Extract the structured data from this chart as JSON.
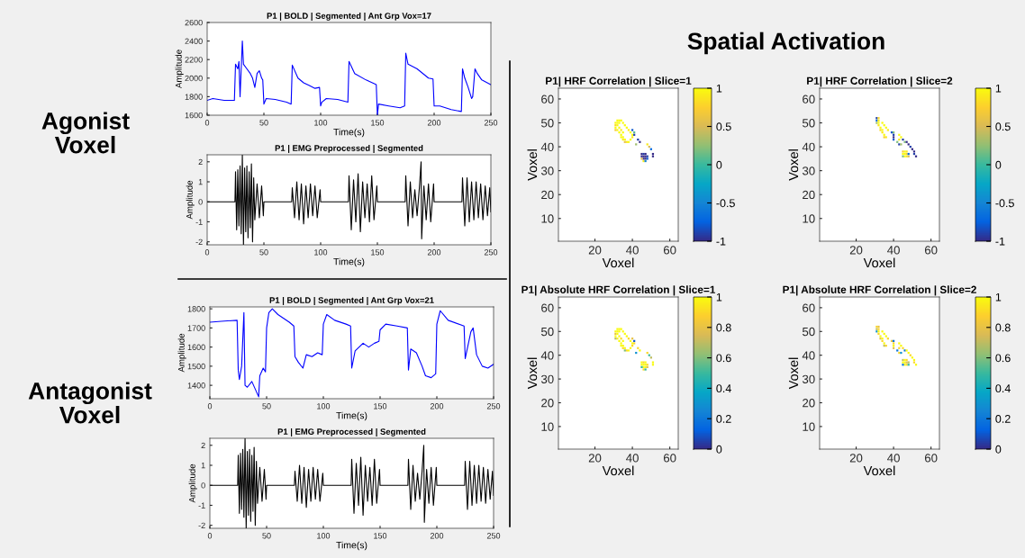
{
  "chart_data": [
    {
      "type": "line",
      "title": "P1 | BOLD | Segmented | Ant Grp Vox=17",
      "xlabel": "Time(s)",
      "ylabel": "Amplitude",
      "annotations": [
        "Agonist\nVoxel"
      ],
      "xlim": [
        0,
        250
      ],
      "xticks": [
        0,
        50,
        100,
        150,
        200,
        250
      ],
      "ylim": [
        1600,
        2600
      ],
      "yticks": [
        1600,
        1800,
        2000,
        2200,
        2400,
        2600
      ],
      "series": [
        {
          "color": "#0000ff",
          "x": [
            0,
            5,
            10,
            15,
            20,
            24,
            25,
            27,
            28,
            29,
            31,
            32,
            35,
            38,
            40,
            42,
            44,
            46,
            48,
            49,
            50,
            52,
            60,
            70,
            74,
            75,
            80,
            85,
            90,
            95,
            99,
            100,
            101,
            105,
            115,
            124,
            125,
            130,
            140,
            149,
            150,
            151,
            160,
            170,
            174,
            175,
            177,
            185,
            195,
            199,
            200,
            205,
            215,
            224,
            225,
            227,
            230,
            233,
            234,
            236,
            238,
            242,
            250
          ],
          "values": [
            1760,
            1780,
            1770,
            1760,
            1760,
            1760,
            2150,
            2100,
            2180,
            1800,
            2400,
            2150,
            2100,
            2050,
            2000,
            1900,
            2050,
            2080,
            2000,
            1980,
            1720,
            1780,
            1770,
            1740,
            1720,
            2140,
            2000,
            1950,
            1920,
            1890,
            1900,
            1700,
            1740,
            1780,
            1770,
            1740,
            2180,
            2050,
            1980,
            1930,
            1600,
            1720,
            1700,
            1680,
            1700,
            2270,
            2150,
            2100,
            2000,
            1990,
            1700,
            1700,
            1660,
            1640,
            2100,
            2000,
            1900,
            1780,
            1800,
            2100,
            2050,
            1980,
            1930
          ]
        }
      ]
    },
    {
      "type": "line",
      "title": "P1 | EMG Preprocessed | Segmented",
      "xlabel": "Time(s)",
      "ylabel": "Amplitude",
      "xlim": [
        0,
        250
      ],
      "xticks": [
        0,
        50,
        100,
        150,
        200,
        250
      ],
      "ylim": [
        -2.15,
        2.35
      ],
      "yticks": [
        -2,
        -1,
        0,
        1,
        2
      ],
      "series": [
        {
          "color": "#000000",
          "x": [
            0,
            24.5,
            25,
            26,
            27,
            28,
            29,
            30,
            31,
            32,
            33,
            34,
            35,
            36,
            37,
            38,
            39,
            40,
            41,
            42,
            44,
            46,
            48,
            49.5,
            50,
            74.5,
            75,
            77,
            79,
            81,
            83,
            85,
            87,
            89,
            91,
            93,
            95,
            97,
            99.5,
            100,
            124.5,
            125,
            127,
            129,
            131,
            133,
            135,
            137,
            139,
            141,
            143,
            145,
            147,
            149.5,
            150,
            174.5,
            175,
            177,
            179,
            181,
            183,
            185,
            187,
            188.5,
            189,
            191,
            193,
            195,
            197,
            199.5,
            200,
            224.5,
            225,
            227,
            229,
            231,
            233,
            235,
            237,
            239,
            241,
            243,
            245,
            247,
            249,
            250
          ],
          "values": [
            0,
            0,
            1.5,
            -1.4,
            1.6,
            -1.2,
            1.8,
            -1.6,
            2.35,
            -2.15,
            1.7,
            -1.5,
            1.8,
            -1.8,
            1.5,
            -1.3,
            1.9,
            -2.0,
            1.2,
            -0.9,
            0.9,
            -0.8,
            0.8,
            -0.7,
            0,
            0,
            0.7,
            -0.8,
            1.0,
            -0.9,
            0.9,
            -1.1,
            0.8,
            -0.8,
            0.9,
            -0.7,
            0.8,
            -0.8,
            0.6,
            0,
            0,
            1.3,
            -1.4,
            1.1,
            -1.0,
            1.4,
            -1.5,
            1.0,
            -0.8,
            0.9,
            -1.0,
            1.3,
            -0.9,
            0.8,
            0,
            0,
            1.3,
            -1.2,
            1.0,
            -0.8,
            0.6,
            -0.7,
            0.7,
            2.0,
            -1.85,
            0.8,
            -0.9,
            0.9,
            -1.0,
            0.9,
            0,
            0,
            1.2,
            -1.2,
            1.2,
            -1.0,
            1.0,
            -0.9,
            1.0,
            -0.8,
            0.9,
            -0.9,
            0.8,
            -0.7,
            0.7,
            -0.5
          ]
        }
      ]
    },
    {
      "type": "line",
      "title": "P1 | BOLD | Segmented | Ant Grp Vox=21",
      "xlabel": "Time(s)",
      "ylabel": "Amplitude",
      "annotations": [
        "Antagonist\nVoxel"
      ],
      "xlim": [
        0,
        250
      ],
      "xticks": [
        0,
        50,
        100,
        150,
        200,
        250
      ],
      "ylim": [
        1330,
        1810
      ],
      "yticks": [
        1400,
        1500,
        1600,
        1700,
        1800
      ],
      "series": [
        {
          "color": "#0000ff",
          "x": [
            0,
            10,
            24,
            25,
            26,
            28,
            30,
            31,
            33,
            37,
            40,
            43,
            44,
            47,
            49,
            50,
            52,
            55,
            60,
            70,
            74,
            75,
            78,
            82,
            85,
            90,
            95,
            99,
            100,
            103,
            110,
            120,
            124,
            125,
            128,
            135,
            140,
            145,
            149,
            150,
            155,
            165,
            174,
            175,
            177,
            182,
            187,
            190,
            195,
            199,
            200,
            203,
            210,
            224,
            225,
            230,
            232,
            235,
            240,
            245,
            250
          ],
          "values": [
            1730,
            1735,
            1740,
            1480,
            1430,
            1500,
            1780,
            1400,
            1390,
            1420,
            1380,
            1340,
            1450,
            1490,
            1470,
            1700,
            1780,
            1800,
            1770,
            1730,
            1710,
            1550,
            1520,
            1490,
            1560,
            1550,
            1570,
            1560,
            1720,
            1770,
            1740,
            1720,
            1710,
            1490,
            1580,
            1620,
            1600,
            1620,
            1630,
            1690,
            1720,
            1710,
            1700,
            1480,
            1590,
            1570,
            1500,
            1450,
            1440,
            1460,
            1720,
            1790,
            1740,
            1710,
            1540,
            1680,
            1700,
            1560,
            1500,
            1490,
            1510
          ]
        }
      ]
    },
    {
      "type": "line",
      "title": "P1 | EMG Preprocessed | Segmented",
      "xlabel": "Time(s)",
      "ylabel": "Amplitude",
      "xlim": [
        0,
        250
      ],
      "xticks": [
        0,
        50,
        100,
        150,
        200,
        250
      ],
      "ylim": [
        -2.15,
        2.35
      ],
      "yticks": [
        -2,
        -1,
        0,
        1,
        2
      ],
      "series": [
        {
          "color": "#000000",
          "x": [
            0,
            24.5,
            25,
            26,
            27,
            28,
            29,
            30,
            31,
            32,
            33,
            34,
            35,
            36,
            37,
            38,
            39,
            40,
            41,
            42,
            44,
            46,
            48,
            49.5,
            50,
            74.5,
            75,
            77,
            79,
            81,
            83,
            85,
            87,
            89,
            91,
            93,
            95,
            97,
            99.5,
            100,
            124.5,
            125,
            127,
            129,
            131,
            133,
            135,
            137,
            139,
            141,
            143,
            145,
            147,
            149.5,
            150,
            174.5,
            175,
            177,
            179,
            181,
            183,
            185,
            187,
            188.5,
            189,
            191,
            193,
            195,
            197,
            199.5,
            200,
            224.5,
            225,
            227,
            229,
            231,
            233,
            235,
            237,
            239,
            241,
            243,
            245,
            247,
            249,
            250
          ],
          "values": [
            0,
            0,
            1.5,
            -1.4,
            1.6,
            -1.2,
            1.8,
            -1.6,
            2.35,
            -2.15,
            1.7,
            -1.5,
            1.8,
            -1.8,
            1.5,
            -1.3,
            1.9,
            -2.0,
            1.2,
            -0.9,
            0.9,
            -0.8,
            0.8,
            -0.7,
            0,
            0,
            0.7,
            -0.8,
            1.0,
            -0.9,
            0.9,
            -1.1,
            0.8,
            -0.8,
            0.9,
            -0.7,
            0.8,
            -0.8,
            0.6,
            0,
            0,
            1.3,
            -1.4,
            1.1,
            -1.0,
            1.4,
            -1.5,
            1.0,
            -0.8,
            0.9,
            -1.0,
            1.3,
            -0.9,
            0.8,
            0,
            0,
            1.3,
            -1.2,
            1.0,
            -0.8,
            0.6,
            -0.7,
            0.7,
            2.0,
            -1.85,
            0.8,
            -0.9,
            0.9,
            -1.0,
            0.9,
            0,
            0,
            1.2,
            -1.2,
            1.2,
            -1.0,
            1.0,
            -0.9,
            1.0,
            -0.8,
            0.9,
            -0.9,
            0.8,
            -0.7,
            0.7,
            -0.5
          ]
        }
      ]
    },
    {
      "type": "scatter",
      "title": "P1| HRF Correlation | Slice=1",
      "xlabel": "Voxel",
      "ylabel": "Voxel",
      "annotations": [
        "Spatial Activation"
      ],
      "marker": "square",
      "xlim": [
        0.5,
        64.5
      ],
      "xticks": [
        20,
        40,
        60
      ],
      "ylim": [
        0.5,
        64.5
      ],
      "yticks": [
        10,
        20,
        30,
        40,
        50,
        60
      ],
      "clim": [
        -1,
        1
      ],
      "cticks": [
        -1,
        -0.5,
        0,
        0.5,
        1
      ],
      "x": [
        31,
        32,
        33,
        34,
        35,
        36,
        37,
        38,
        39,
        40,
        40,
        39,
        38,
        37,
        36,
        35,
        34,
        33,
        32,
        31,
        31,
        32,
        33,
        34,
        35,
        33,
        32,
        34,
        35,
        31,
        36,
        40,
        41,
        41,
        43,
        44,
        42,
        48,
        49,
        50,
        51,
        51,
        45,
        46,
        47,
        45,
        46,
        47,
        48,
        46,
        47,
        48,
        45,
        46,
        47
      ],
      "values": [
        50,
        51,
        51,
        51,
        50,
        49,
        48,
        47,
        46,
        45,
        44,
        43,
        42,
        42,
        43,
        44,
        45,
        46,
        47,
        48,
        49,
        49,
        48,
        47,
        46,
        50,
        50,
        44,
        43,
        47,
        42,
        47,
        46,
        45,
        43,
        42,
        41,
        41,
        40,
        39,
        37,
        36,
        37,
        37,
        37,
        36,
        36,
        36,
        36,
        35,
        35,
        35,
        35,
        34,
        34
      ],
      "cvalues": [
        1,
        1,
        1,
        1,
        1,
        1,
        1,
        0.9,
        1,
        1,
        0.9,
        1,
        1,
        0.9,
        1,
        1,
        1,
        1,
        1,
        1,
        0.8,
        1,
        1,
        0.9,
        1,
        1,
        1,
        1,
        0.9,
        0.7,
        0.6,
        -0.8,
        0.1,
        -0.9,
        -0.9,
        -1,
        0.3,
        0.9,
        0.5,
        -0.7,
        -1,
        -1,
        -1,
        -0.9,
        -1,
        -1,
        -1,
        -1,
        -0.9,
        -1,
        -1,
        -0.8,
        0.5,
        0.9,
        -0.5
      ]
    },
    {
      "type": "scatter",
      "title": "P1| HRF Correlation | Slice=2",
      "xlabel": "Voxel",
      "ylabel": "Voxel",
      "marker": "square",
      "xlim": [
        0.5,
        64.5
      ],
      "xticks": [
        20,
        40,
        60
      ],
      "ylim": [
        0.5,
        64.5
      ],
      "yticks": [
        10,
        20,
        30,
        40,
        50,
        60
      ],
      "clim": [
        -1,
        1
      ],
      "cticks": [
        -1,
        -0.5,
        0,
        0.5,
        1
      ],
      "x": [
        31,
        32,
        31,
        32,
        31,
        32,
        32,
        33,
        33,
        34,
        34,
        35,
        35,
        36,
        34,
        35,
        36,
        37,
        39,
        40,
        40,
        40,
        40,
        43,
        44,
        43,
        42,
        43,
        44,
        45,
        46,
        47,
        48,
        49,
        50,
        51,
        51,
        52,
        45,
        46,
        47,
        45,
        46,
        47,
        46,
        47,
        48,
        45,
        48
      ],
      "values": [
        52,
        52,
        51,
        51,
        50,
        50,
        49,
        48,
        47,
        47,
        46,
        45,
        44,
        44,
        50,
        49,
        48,
        47,
        46,
        46,
        45,
        44,
        43,
        45,
        44,
        43,
        42,
        41,
        41,
        43,
        42,
        42,
        41,
        40,
        39,
        38,
        37,
        36,
        38,
        38,
        38,
        37,
        37,
        37,
        36,
        36,
        36,
        36,
        37
      ],
      "cvalues": [
        -0.9,
        0.8,
        -0.7,
        0.9,
        0.3,
        1,
        0.9,
        1,
        0.8,
        1,
        0.9,
        1,
        0.7,
        0.9,
        1,
        1,
        1,
        0.9,
        -0.8,
        0.2,
        -0.9,
        -1,
        -0.8,
        1,
        1,
        0.9,
        0.2,
        -0.9,
        0.3,
        -0.9,
        0.2,
        -1,
        -1,
        -0.9,
        -1,
        -1,
        -0.9,
        -1,
        0.7,
        1,
        0.9,
        1,
        1,
        0.8,
        1,
        0.9,
        0.5,
        0.2,
        -0.7
      ]
    },
    {
      "type": "scatter",
      "title": "P1| Absolute HRF Correlation | Slice=1",
      "xlabel": "Voxel",
      "ylabel": "Voxel",
      "marker": "square",
      "xlim": [
        0.5,
        64.5
      ],
      "xticks": [
        20,
        40,
        60
      ],
      "ylim": [
        0.5,
        64.5
      ],
      "yticks": [
        10,
        20,
        30,
        40,
        50,
        60
      ],
      "clim": [
        0,
        1
      ],
      "cticks": [
        0,
        0.2,
        0.4,
        0.6,
        0.8,
        1
      ],
      "x": [
        31,
        32,
        33,
        34,
        35,
        36,
        37,
        38,
        39,
        40,
        40,
        39,
        38,
        37,
        36,
        35,
        34,
        33,
        32,
        31,
        31,
        32,
        33,
        34,
        35,
        33,
        32,
        34,
        35,
        31,
        36,
        40,
        41,
        41,
        43,
        44,
        42,
        48,
        49,
        50,
        51,
        51,
        45,
        46,
        47,
        45,
        46,
        47,
        48,
        46,
        47,
        48,
        45,
        46,
        47
      ],
      "values": [
        50,
        51,
        51,
        51,
        50,
        49,
        48,
        47,
        46,
        45,
        44,
        43,
        42,
        42,
        43,
        44,
        45,
        46,
        47,
        48,
        49,
        49,
        48,
        47,
        46,
        50,
        50,
        44,
        43,
        47,
        42,
        47,
        46,
        45,
        43,
        42,
        41,
        41,
        40,
        39,
        37,
        36,
        37,
        37,
        37,
        36,
        36,
        36,
        36,
        35,
        35,
        35,
        35,
        34,
        34
      ],
      "cvalues": [
        1,
        1,
        1,
        1,
        1,
        1,
        1,
        0.9,
        1,
        1,
        0.9,
        1,
        1,
        0.9,
        1,
        1,
        1,
        1,
        1,
        1,
        0.8,
        1,
        1,
        0.9,
        1,
        1,
        1,
        1,
        0.9,
        0.7,
        0.6,
        0.8,
        0.1,
        0.9,
        0.9,
        1,
        0.3,
        0.9,
        0.5,
        0.7,
        1,
        1,
        1,
        0.9,
        1,
        1,
        1,
        1,
        0.9,
        1,
        1,
        0.8,
        0.5,
        0.9,
        0.5
      ]
    },
    {
      "type": "scatter",
      "title": "P1| Absolute HRF Correlation | Slice=2",
      "xlabel": "Voxel",
      "ylabel": "Voxel",
      "marker": "square",
      "xlim": [
        0.5,
        64.5
      ],
      "xticks": [
        20,
        40,
        60
      ],
      "ylim": [
        0.5,
        64.5
      ],
      "yticks": [
        10,
        20,
        30,
        40,
        50,
        60
      ],
      "clim": [
        0,
        1
      ],
      "cticks": [
        0,
        0.2,
        0.4,
        0.6,
        0.8,
        1
      ],
      "x": [
        31,
        32,
        31,
        32,
        31,
        32,
        32,
        33,
        33,
        34,
        34,
        35,
        35,
        36,
        34,
        35,
        36,
        37,
        39,
        40,
        40,
        40,
        40,
        43,
        44,
        43,
        42,
        43,
        44,
        45,
        46,
        47,
        48,
        49,
        50,
        51,
        51,
        52,
        45,
        46,
        47,
        45,
        46,
        47,
        46,
        47,
        48,
        45,
        48
      ],
      "values": [
        52,
        52,
        51,
        51,
        50,
        50,
        49,
        48,
        47,
        47,
        46,
        45,
        44,
        44,
        50,
        49,
        48,
        47,
        46,
        46,
        45,
        44,
        43,
        45,
        44,
        43,
        42,
        41,
        41,
        43,
        42,
        42,
        41,
        40,
        39,
        38,
        37,
        36,
        38,
        38,
        38,
        37,
        37,
        37,
        36,
        36,
        36,
        36,
        37
      ],
      "cvalues": [
        0.9,
        0.8,
        0.7,
        0.9,
        0.3,
        1,
        0.9,
        1,
        0.8,
        1,
        0.9,
        1,
        0.7,
        0.9,
        1,
        1,
        1,
        0.9,
        0.8,
        0.2,
        0.9,
        1,
        0.8,
        1,
        1,
        0.9,
        0.2,
        0.9,
        0.3,
        0.9,
        0.2,
        1,
        1,
        0.9,
        1,
        1,
        0.9,
        1,
        0.7,
        1,
        0.9,
        1,
        1,
        0.8,
        1,
        0.9,
        0.5,
        0.2,
        0.7
      ]
    }
  ]
}
